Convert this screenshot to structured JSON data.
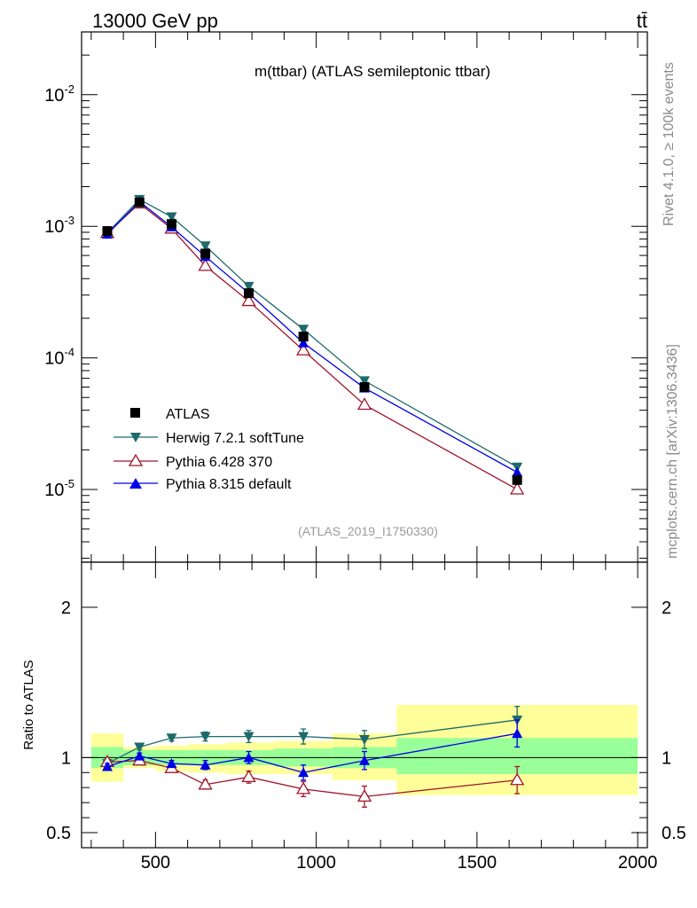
{
  "header": {
    "left": "13000 GeV pp",
    "right": "tt̄"
  },
  "side_labels": {
    "top": "Rivet 4.1.0, ≥ 100k events",
    "bottom": "mcplots.cern.ch [arXiv:1306.3436]"
  },
  "colors": {
    "ATLAS": "#000000",
    "Herwig": "#1e6a6a",
    "Pythia6": "#a0152b",
    "Pythia8": "#0000e6",
    "band_inner": "#99ff99",
    "band_outer": "#ffff99"
  },
  "chart_data": [
    {
      "panel": "main",
      "type": "line",
      "title": "m(ttbar) (ATLAS semileptonic ttbar)",
      "watermark": "(ATLAS_2019_I1750330)",
      "yscale": "log",
      "xlim": [
        270,
        2030
      ],
      "ylim": [
        2.8e-06,
        0.03
      ],
      "y_ticks": [
        1e-05,
        0.0001,
        0.001,
        0.01
      ],
      "y_tick_labels": [
        "10^-5",
        "10^-4",
        "10^-3",
        "10^-2"
      ],
      "legend_position": "lower-left",
      "x": [
        350,
        450,
        550,
        655,
        790,
        960,
        1150,
        1625
      ],
      "series": [
        {
          "name": "ATLAS",
          "marker": "square",
          "values": [
            0.00092,
            0.00152,
            0.00104,
            0.00062,
            0.00031,
            0.000145,
            6e-05,
            1.18e-05
          ]
        },
        {
          "name": "Herwig 7.2.1 softTune",
          "marker": "triangle-down",
          "values": [
            0.00089,
            0.0016,
            0.00118,
            0.00071,
            0.00035,
            0.000165,
            6.7e-05,
            1.48e-05
          ]
        },
        {
          "name": "Pythia 6.428 370",
          "marker": "triangle-up-open",
          "values": [
            0.00089,
            0.00149,
            0.00096,
            0.0005,
            0.00027,
            0.000114,
            4.4e-05,
            1e-05
          ]
        },
        {
          "name": "Pythia 8.315 default",
          "marker": "triangle-up",
          "values": [
            0.00087,
            0.00154,
            0.00099,
            0.00059,
            0.00031,
            0.00013,
            5.9e-05,
            1.35e-05
          ]
        }
      ]
    },
    {
      "panel": "ratio",
      "type": "line",
      "ylabel": "Ratio to ATLAS",
      "xlim": [
        270,
        2030
      ],
      "ylim": [
        0.4,
        2.3
      ],
      "y_tick_labels": [
        "0.5",
        "1",
        "2"
      ],
      "y_ticks": [
        0.5,
        1,
        2
      ],
      "x_ticks": [
        500,
        1000,
        1500,
        2000
      ],
      "x_tick_labels": [
        "500",
        "1000",
        "1500",
        "2000"
      ],
      "bins": [
        {
          "low": 300,
          "high": 400,
          "inner": [
            0.93,
            1.07
          ],
          "outer": [
            0.84,
            1.16
          ]
        },
        {
          "low": 400,
          "high": 500,
          "inner": [
            0.95,
            1.05
          ],
          "outer": [
            0.93,
            1.07
          ]
        },
        {
          "low": 500,
          "high": 600,
          "inner": [
            0.95,
            1.05
          ],
          "outer": [
            0.91,
            1.08
          ]
        },
        {
          "low": 600,
          "high": 720,
          "inner": [
            0.95,
            1.05
          ],
          "outer": [
            0.9,
            1.09
          ]
        },
        {
          "low": 720,
          "high": 870,
          "inner": [
            0.95,
            1.05
          ],
          "outer": [
            0.89,
            1.1
          ]
        },
        {
          "low": 870,
          "high": 1050,
          "inner": [
            0.94,
            1.06
          ],
          "outer": [
            0.89,
            1.11
          ]
        },
        {
          "low": 1050,
          "high": 1250,
          "inner": [
            0.93,
            1.07
          ],
          "outer": [
            0.85,
            1.16
          ]
        },
        {
          "low": 1250,
          "high": 2000,
          "inner": [
            0.89,
            1.13
          ],
          "outer": [
            0.75,
            1.35
          ]
        }
      ],
      "x": [
        350,
        450,
        550,
        655,
        790,
        960,
        1150,
        1625
      ],
      "series": [
        {
          "name": "Herwig 7.2.1 softTune",
          "values": [
            0.96,
            1.07,
            1.13,
            1.14,
            1.14,
            1.14,
            1.12,
            1.25
          ],
          "errors": [
            0.02,
            0.02,
            0.02,
            0.03,
            0.04,
            0.05,
            0.06,
            0.09
          ]
        },
        {
          "name": "Pythia 6.428 370",
          "values": [
            0.97,
            0.98,
            0.93,
            0.82,
            0.87,
            0.79,
            0.74,
            0.85
          ],
          "errors": [
            0.02,
            0.02,
            0.02,
            0.03,
            0.04,
            0.05,
            0.07,
            0.09
          ]
        },
        {
          "name": "Pythia 8.315 default",
          "values": [
            0.94,
            1.01,
            0.96,
            0.95,
            1.0,
            0.9,
            0.98,
            1.16
          ],
          "errors": [
            0.02,
            0.02,
            0.02,
            0.03,
            0.04,
            0.05,
            0.06,
            0.09
          ]
        }
      ]
    }
  ]
}
